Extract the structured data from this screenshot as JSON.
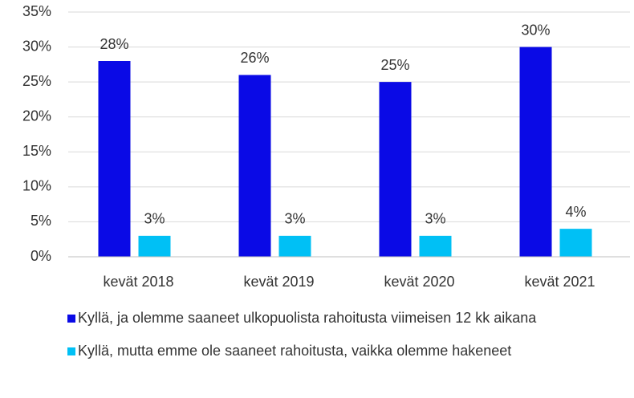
{
  "chart_data": {
    "type": "bar",
    "categories": [
      "kevät 2018",
      "kevät 2019",
      "kevät 2020",
      "kevät 2021"
    ],
    "series": [
      {
        "name": "Kyllä, ja olemme saaneet ulkopuolista rahoitusta viimeisen 12 kk aikana",
        "color": "#0a0ae6",
        "values": [
          28,
          26,
          25,
          30
        ],
        "value_labels": [
          "28%",
          "26%",
          "25%",
          "30%"
        ]
      },
      {
        "name": "Kyllä, mutta emme ole saaneet rahoitusta, vaikka olemme hakeneet",
        "color": "#00c0f5",
        "values": [
          3,
          3,
          3,
          4
        ],
        "value_labels": [
          "3%",
          "3%",
          "3%",
          "4%"
        ]
      }
    ],
    "ylim": [
      0,
      35
    ],
    "yticks": [
      {
        "value": 0,
        "label": "0%"
      },
      {
        "value": 5,
        "label": "5%"
      },
      {
        "value": 10,
        "label": "10%"
      },
      {
        "value": 15,
        "label": "15%"
      },
      {
        "value": 20,
        "label": "20%"
      },
      {
        "value": 25,
        "label": "25%"
      },
      {
        "value": 30,
        "label": "30%"
      },
      {
        "value": 35,
        "label": "35%"
      }
    ],
    "grid": true,
    "legend": "bottom"
  }
}
